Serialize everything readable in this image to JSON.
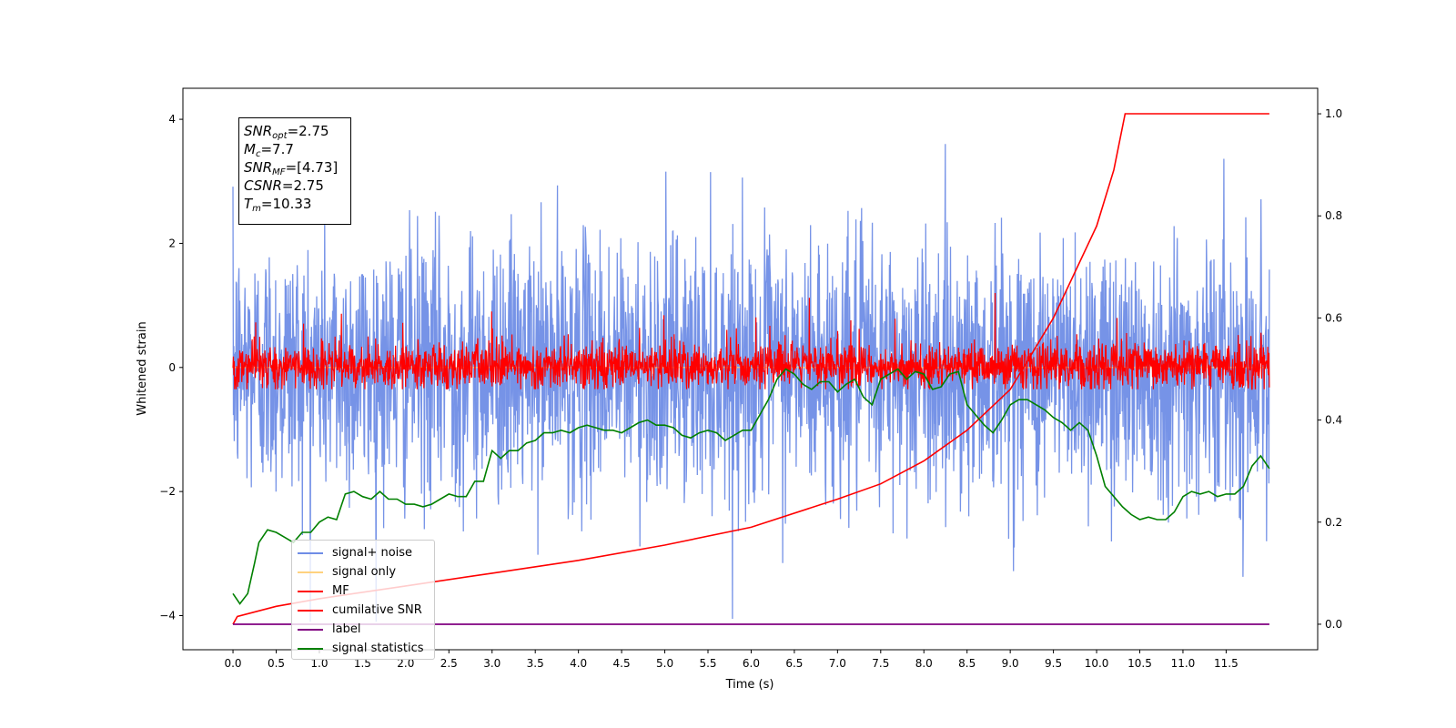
{
  "chart_data": {
    "type": "line",
    "xlabel": "Time (s)",
    "ylabel": "Whitened strain",
    "xlim": [
      -0.58,
      12.56
    ],
    "ylim_left": [
      -4.55,
      4.5
    ],
    "ylim_right": [
      -0.05,
      1.05
    ],
    "x_ticks": [
      "0.0",
      "0.5",
      "1.0",
      "1.5",
      "2.0",
      "2.5",
      "3.0",
      "3.5",
      "4.0",
      "4.5",
      "5.0",
      "5.5",
      "6.0",
      "6.5",
      "7.0",
      "7.5",
      "8.0",
      "8.5",
      "9.0",
      "9.5",
      "10.0",
      "10.5",
      "11.0",
      "11.5"
    ],
    "y_ticks_left": [
      "4",
      "2",
      "0",
      "−2",
      "−4"
    ],
    "y_ticks_right": [
      "1.0",
      "0.8",
      "0.6",
      "0.4",
      "0.2",
      "0.0"
    ],
    "annotation": {
      "snr_opt": "=2.75",
      "mc": "=7.7",
      "snr_mf": "=[4.73]",
      "csnr": "=2.75",
      "tm": "=10.33"
    },
    "legend_placement": "lower left",
    "grid": false,
    "series": [
      {
        "name": "signal+ noise",
        "color": "#6f8de6",
        "axis": "left",
        "description_range": [
          -4.1,
          4.1
        ],
        "x_range": [
          0.0,
          12.0
        ]
      },
      {
        "name": "signal only",
        "color": "#ffd27f",
        "axis": "left",
        "values": "approximately 0 throughout"
      },
      {
        "name": "MF",
        "color": "#ff0000",
        "axis": "left",
        "description_range": [
          -0.35,
          1.2
        ],
        "x_range": [
          0.0,
          12.0
        ]
      },
      {
        "name": "cumilative SNR",
        "color": "#ff0000",
        "axis": "right",
        "points": [
          [
            0.0,
            0.0
          ],
          [
            0.05,
            0.015
          ],
          [
            0.5,
            0.035
          ],
          [
            1.0,
            0.05
          ],
          [
            2.0,
            0.075
          ],
          [
            3.0,
            0.1
          ],
          [
            4.0,
            0.125
          ],
          [
            5.0,
            0.155
          ],
          [
            6.0,
            0.19
          ],
          [
            7.0,
            0.245
          ],
          [
            7.5,
            0.275
          ],
          [
            8.0,
            0.32
          ],
          [
            8.5,
            0.38
          ],
          [
            9.0,
            0.46
          ],
          [
            9.5,
            0.6
          ],
          [
            10.0,
            0.78
          ],
          [
            10.2,
            0.89
          ],
          [
            10.33,
            1.0
          ],
          [
            12.0,
            1.0
          ]
        ]
      },
      {
        "name": "label",
        "color": "#800080",
        "axis": "right",
        "points": [
          [
            0.0,
            0.0
          ],
          [
            12.0,
            0.0
          ]
        ]
      },
      {
        "name": "signal statistics",
        "color": "#008000",
        "axis": "right",
        "points": [
          [
            0.0,
            0.06
          ],
          [
            0.08,
            0.04
          ],
          [
            0.17,
            0.06
          ],
          [
            0.25,
            0.12
          ],
          [
            0.3,
            0.16
          ],
          [
            0.4,
            0.185
          ],
          [
            0.5,
            0.18
          ],
          [
            0.6,
            0.17
          ],
          [
            0.7,
            0.16
          ],
          [
            0.8,
            0.18
          ],
          [
            0.9,
            0.18
          ],
          [
            1.0,
            0.2
          ],
          [
            1.1,
            0.21
          ],
          [
            1.2,
            0.205
          ],
          [
            1.3,
            0.255
          ],
          [
            1.4,
            0.26
          ],
          [
            1.5,
            0.25
          ],
          [
            1.6,
            0.245
          ],
          [
            1.7,
            0.26
          ],
          [
            1.8,
            0.245
          ],
          [
            1.9,
            0.245
          ],
          [
            2.0,
            0.235
          ],
          [
            2.1,
            0.235
          ],
          [
            2.2,
            0.23
          ],
          [
            2.3,
            0.235
          ],
          [
            2.5,
            0.255
          ],
          [
            2.6,
            0.25
          ],
          [
            2.7,
            0.25
          ],
          [
            2.8,
            0.28
          ],
          [
            2.9,
            0.28
          ],
          [
            3.0,
            0.34
          ],
          [
            3.1,
            0.325
          ],
          [
            3.2,
            0.34
          ],
          [
            3.3,
            0.34
          ],
          [
            3.4,
            0.355
          ],
          [
            3.5,
            0.36
          ],
          [
            3.6,
            0.375
          ],
          [
            3.7,
            0.375
          ],
          [
            3.8,
            0.38
          ],
          [
            3.9,
            0.375
          ],
          [
            4.0,
            0.385
          ],
          [
            4.1,
            0.39
          ],
          [
            4.2,
            0.385
          ],
          [
            4.3,
            0.38
          ],
          [
            4.4,
            0.38
          ],
          [
            4.5,
            0.375
          ],
          [
            4.6,
            0.385
          ],
          [
            4.7,
            0.395
          ],
          [
            4.8,
            0.4
          ],
          [
            4.9,
            0.39
          ],
          [
            5.0,
            0.39
          ],
          [
            5.1,
            0.385
          ],
          [
            5.2,
            0.37
          ],
          [
            5.3,
            0.365
          ],
          [
            5.4,
            0.375
          ],
          [
            5.5,
            0.38
          ],
          [
            5.6,
            0.375
          ],
          [
            5.7,
            0.36
          ],
          [
            5.8,
            0.37
          ],
          [
            5.9,
            0.38
          ],
          [
            6.0,
            0.38
          ],
          [
            6.1,
            0.41
          ],
          [
            6.2,
            0.44
          ],
          [
            6.3,
            0.48
          ],
          [
            6.4,
            0.5
          ],
          [
            6.5,
            0.49
          ],
          [
            6.6,
            0.47
          ],
          [
            6.7,
            0.46
          ],
          [
            6.8,
            0.475
          ],
          [
            6.9,
            0.475
          ],
          [
            7.0,
            0.455
          ],
          [
            7.1,
            0.47
          ],
          [
            7.2,
            0.48
          ],
          [
            7.3,
            0.445
          ],
          [
            7.4,
            0.43
          ],
          [
            7.5,
            0.48
          ],
          [
            7.6,
            0.49
          ],
          [
            7.7,
            0.5
          ],
          [
            7.8,
            0.48
          ],
          [
            7.9,
            0.495
          ],
          [
            8.0,
            0.49
          ],
          [
            8.1,
            0.46
          ],
          [
            8.2,
            0.465
          ],
          [
            8.3,
            0.49
          ],
          [
            8.4,
            0.495
          ],
          [
            8.5,
            0.43
          ],
          [
            8.6,
            0.41
          ],
          [
            8.7,
            0.39
          ],
          [
            8.8,
            0.375
          ],
          [
            8.9,
            0.4
          ],
          [
            9.0,
            0.43
          ],
          [
            9.1,
            0.44
          ],
          [
            9.2,
            0.44
          ],
          [
            9.3,
            0.43
          ],
          [
            9.4,
            0.42
          ],
          [
            9.5,
            0.405
          ],
          [
            9.6,
            0.395
          ],
          [
            9.7,
            0.38
          ],
          [
            9.8,
            0.395
          ],
          [
            9.9,
            0.38
          ],
          [
            10.0,
            0.33
          ],
          [
            10.1,
            0.27
          ],
          [
            10.2,
            0.25
          ],
          [
            10.3,
            0.23
          ],
          [
            10.4,
            0.215
          ],
          [
            10.5,
            0.205
          ],
          [
            10.6,
            0.21
          ],
          [
            10.7,
            0.205
          ],
          [
            10.8,
            0.205
          ],
          [
            10.9,
            0.22
          ],
          [
            11.0,
            0.25
          ],
          [
            11.1,
            0.26
          ],
          [
            11.2,
            0.255
          ],
          [
            11.3,
            0.26
          ],
          [
            11.4,
            0.25
          ],
          [
            11.5,
            0.255
          ],
          [
            11.6,
            0.255
          ],
          [
            11.7,
            0.27
          ],
          [
            11.8,
            0.31
          ],
          [
            11.9,
            0.33
          ],
          [
            12.0,
            0.305
          ]
        ]
      }
    ]
  }
}
